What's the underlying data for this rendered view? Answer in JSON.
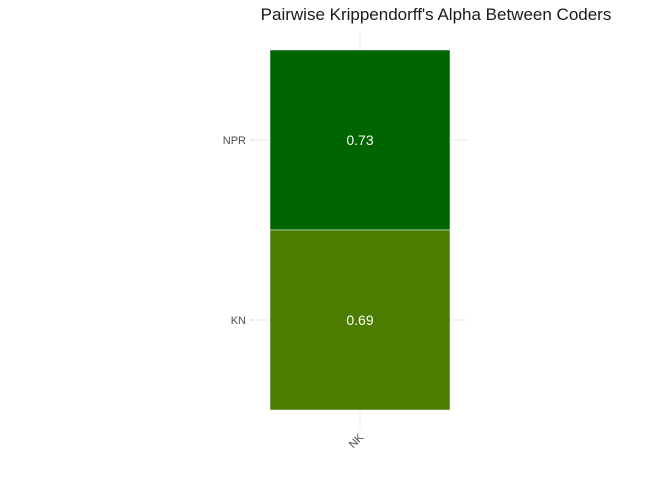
{
  "chart_data": {
    "type": "heatmap",
    "title": "Pairwise Krippendorff's Alpha Between Coders",
    "xlabel": "",
    "ylabel": "",
    "x_categories": [
      "NK"
    ],
    "y_categories": [
      "NPR",
      "KN"
    ],
    "cells": [
      {
        "x": "NK",
        "y": "NPR",
        "value": 0.73,
        "label": "0.73"
      },
      {
        "x": "NK",
        "y": "KN",
        "value": 0.69,
        "label": "0.69"
      }
    ],
    "colors": {
      "high": "#006400",
      "low": "#4c7d00",
      "grid": "#ebebeb",
      "tick_text": "#4d4d4d",
      "cell_text": "#ffffff"
    },
    "grid": true,
    "legend": "none"
  }
}
